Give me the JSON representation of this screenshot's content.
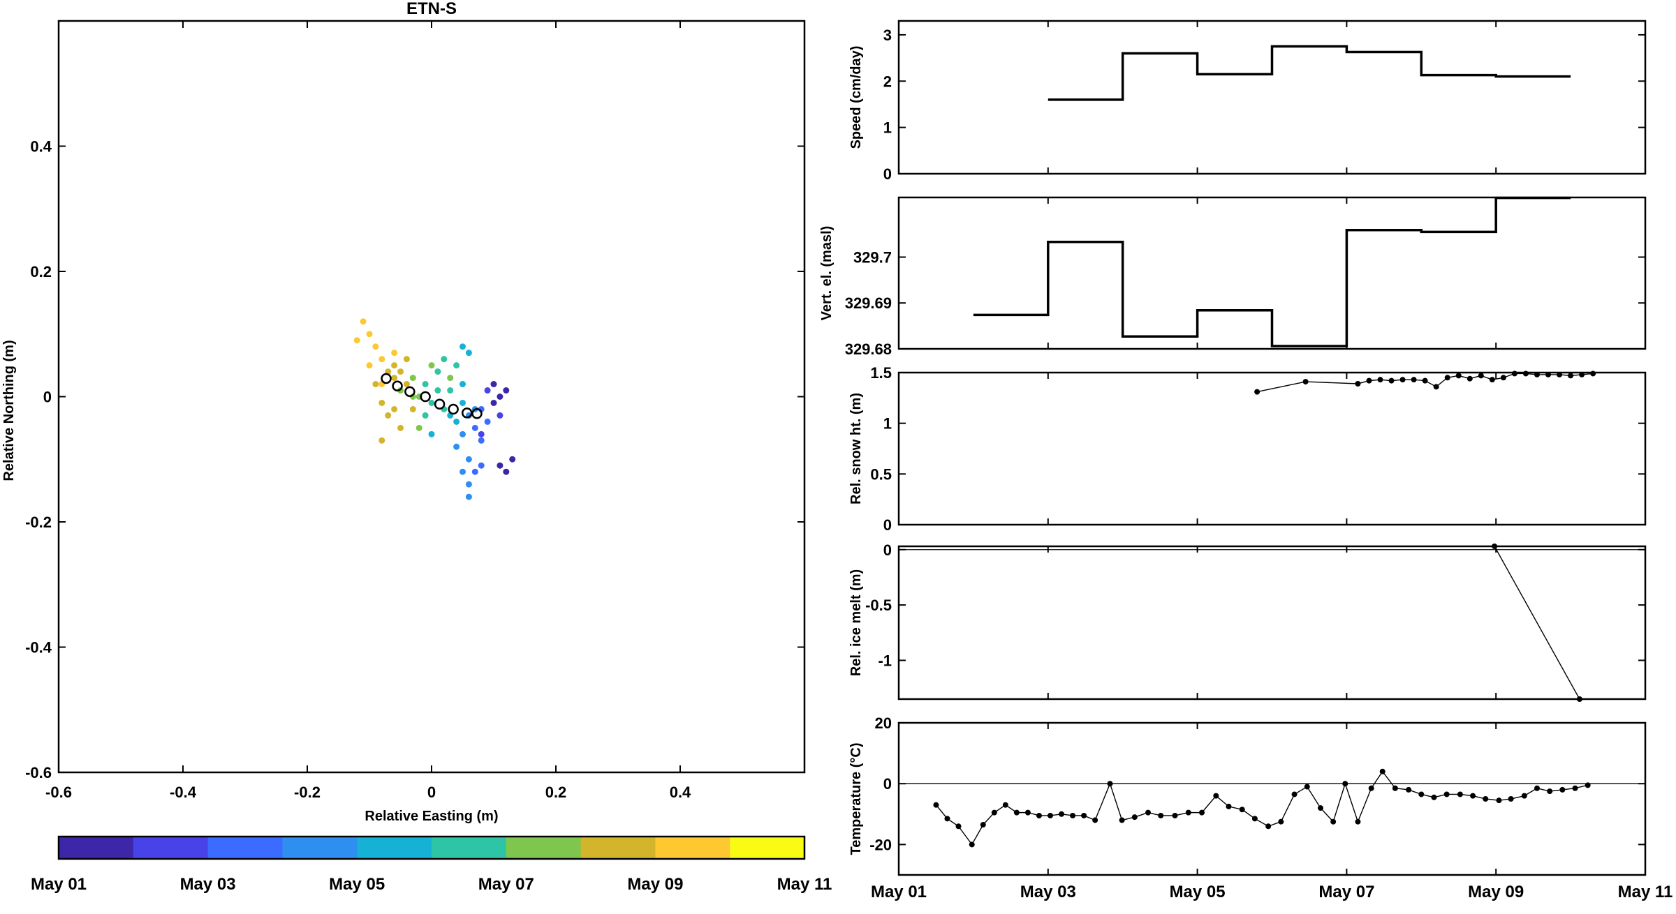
{
  "figure": {
    "title": "ETN-S",
    "date_ticks": [
      "May 01",
      "May 03",
      "May 05",
      "May 07",
      "May 09",
      "May 11"
    ]
  },
  "chart_data": [
    {
      "type": "scatter",
      "title": "ETN-S",
      "xlabel": "Relative Easting (m)",
      "ylabel": "Relative Northing (m)",
      "xlim": [
        -0.6,
        0.6
      ],
      "ylim": [
        -0.6,
        0.6
      ],
      "xticks": [
        -0.6,
        -0.4,
        -0.2,
        0,
        0.2,
        0.4
      ],
      "yticks": [
        -0.6,
        -0.4,
        -0.2,
        0,
        0.2,
        0.4
      ],
      "grid": false,
      "colorbar": {
        "colors": [
          "#3e26a8",
          "#4743e8",
          "#3c6cff",
          "#2f8ff0",
          "#16b2d6",
          "#2ec4a6",
          "#7ec64e",
          "#d2b52a",
          "#fdc830",
          "#f9fb14"
        ],
        "labels": [
          "May 01",
          "May 03",
          "May 05",
          "May 07",
          "May 09",
          "May 11"
        ]
      },
      "points": [
        {
          "x": -0.11,
          "y": 0.12,
          "day": 9.8
        },
        {
          "x": -0.1,
          "y": 0.1,
          "day": 9.6
        },
        {
          "x": -0.12,
          "y": 0.09,
          "day": 9.5
        },
        {
          "x": -0.09,
          "y": 0.08,
          "day": 9.4
        },
        {
          "x": -0.08,
          "y": 0.06,
          "day": 9.2
        },
        {
          "x": -0.1,
          "y": 0.05,
          "day": 9.6
        },
        {
          "x": -0.07,
          "y": 0.04,
          "day": 8.9
        },
        {
          "x": -0.06,
          "y": 0.03,
          "day": 8.6
        },
        {
          "x": -0.09,
          "y": 0.02,
          "day": 8.8
        },
        {
          "x": -0.08,
          "y": -0.01,
          "day": 8.5
        },
        {
          "x": -0.07,
          "y": -0.03,
          "day": 8.3
        },
        {
          "x": -0.05,
          "y": -0.05,
          "day": 8.2
        },
        {
          "x": -0.08,
          "y": -0.07,
          "day": 8.1
        },
        {
          "x": -0.06,
          "y": 0.05,
          "day": 8.7
        },
        {
          "x": -0.04,
          "y": 0.02,
          "day": 8.4
        },
        {
          "x": -0.03,
          "y": -0.02,
          "day": 8.0
        },
        {
          "x": -0.02,
          "y": -0.05,
          "day": 7.9
        },
        {
          "x": -0.04,
          "y": 0.06,
          "day": 8.6
        },
        {
          "x": -0.05,
          "y": 0.01,
          "day": 7.8
        },
        {
          "x": -0.03,
          "y": 0.03,
          "day": 7.4
        },
        {
          "x": -0.02,
          "y": 0.0,
          "day": 7.2
        },
        {
          "x": -0.01,
          "y": 0.02,
          "day": 6.9
        },
        {
          "x": 0.0,
          "y": -0.01,
          "day": 6.6
        },
        {
          "x": 0.01,
          "y": 0.01,
          "day": 6.3
        },
        {
          "x": 0.02,
          "y": -0.02,
          "day": 6.0
        },
        {
          "x": 0.01,
          "y": 0.04,
          "day": 6.8
        },
        {
          "x": 0.03,
          "y": 0.03,
          "day": 7.0
        },
        {
          "x": 0.04,
          "y": 0.05,
          "day": 6.4
        },
        {
          "x": 0.05,
          "y": 0.08,
          "day": 5.6
        },
        {
          "x": 0.06,
          "y": 0.07,
          "day": 5.4
        },
        {
          "x": 0.03,
          "y": -0.03,
          "day": 5.7
        },
        {
          "x": 0.04,
          "y": -0.04,
          "day": 5.3
        },
        {
          "x": 0.05,
          "y": -0.01,
          "day": 5.1
        },
        {
          "x": 0.06,
          "y": -0.03,
          "day": 4.8
        },
        {
          "x": 0.05,
          "y": -0.06,
          "day": 4.6
        },
        {
          "x": 0.04,
          "y": -0.08,
          "day": 4.4
        },
        {
          "x": 0.06,
          "y": -0.1,
          "day": 4.3
        },
        {
          "x": 0.05,
          "y": -0.12,
          "day": 4.2
        },
        {
          "x": 0.06,
          "y": -0.14,
          "day": 4.1
        },
        {
          "x": 0.06,
          "y": -0.16,
          "day": 4.0
        },
        {
          "x": 0.07,
          "y": -0.12,
          "day": 3.9
        },
        {
          "x": 0.08,
          "y": -0.11,
          "day": 3.8
        },
        {
          "x": 0.07,
          "y": -0.05,
          "day": 3.6
        },
        {
          "x": 0.08,
          "y": -0.02,
          "day": 3.3
        },
        {
          "x": 0.09,
          "y": -0.04,
          "day": 3.0
        },
        {
          "x": 0.08,
          "y": -0.06,
          "day": 2.6
        },
        {
          "x": 0.09,
          "y": 0.01,
          "day": 2.2
        },
        {
          "x": 0.1,
          "y": -0.01,
          "day": 1.8
        },
        {
          "x": 0.11,
          "y": 0.0,
          "day": 1.4
        },
        {
          "x": 0.12,
          "y": 0.01,
          "day": 1.0
        },
        {
          "x": 0.1,
          "y": 0.02,
          "day": 1.6
        },
        {
          "x": 0.11,
          "y": -0.03,
          "day": 2.0
        },
        {
          "x": 0.13,
          "y": -0.1,
          "day": 1.5
        },
        {
          "x": 0.12,
          "y": -0.12,
          "day": 1.7
        },
        {
          "x": 0.11,
          "y": -0.11,
          "day": 1.9
        },
        {
          "x": 0.02,
          "y": 0.06,
          "day": 6.2
        },
        {
          "x": 0.0,
          "y": 0.05,
          "day": 7.1
        },
        {
          "x": -0.01,
          "y": -0.03,
          "day": 6.5
        },
        {
          "x": 0.0,
          "y": -0.06,
          "day": 5.9
        },
        {
          "x": -0.06,
          "y": 0.07,
          "day": 9.1
        },
        {
          "x": -0.08,
          "y": 0.02,
          "day": 9.0
        },
        {
          "x": -0.06,
          "y": -0.02,
          "day": 8.4
        },
        {
          "x": 0.07,
          "y": -0.02,
          "day": 4.5
        },
        {
          "x": 0.05,
          "y": 0.02,
          "day": 5.9
        },
        {
          "x": -0.03,
          "y": 0.0,
          "day": 7.6
        },
        {
          "x": 0.08,
          "y": -0.07,
          "day": 3.1
        },
        {
          "x": 0.03,
          "y": 0.01,
          "day": 6.7
        },
        {
          "x": -0.05,
          "y": 0.04,
          "day": 8.8
        }
      ],
      "daily_mean_points": [
        {
          "x": -0.073,
          "y": 0.029
        },
        {
          "x": -0.055,
          "y": 0.017
        },
        {
          "x": -0.035,
          "y": 0.008
        },
        {
          "x": -0.01,
          "y": 0.0
        },
        {
          "x": 0.013,
          "y": -0.012
        },
        {
          "x": 0.035,
          "y": -0.02
        },
        {
          "x": 0.057,
          "y": -0.026
        },
        {
          "x": 0.073,
          "y": -0.027
        }
      ]
    },
    {
      "type": "line",
      "ylabel": "Speed (cm/day)",
      "xlim": [
        1,
        11
      ],
      "ylim": [
        0,
        3.3
      ],
      "yticks": [
        0,
        1,
        2,
        3
      ],
      "step": true,
      "x": [
        3,
        4,
        4,
        5,
        5,
        6,
        6,
        7,
        7,
        8,
        8,
        9,
        9,
        10
      ],
      "y": [
        1.6,
        1.6,
        2.6,
        2.6,
        2.15,
        2.15,
        2.75,
        2.75,
        2.63,
        2.63,
        2.13,
        2.13,
        2.1,
        2.1
      ]
    },
    {
      "type": "line",
      "ylabel": "Vert. el. (masl)",
      "xlim": [
        1,
        11
      ],
      "ylim": [
        329.68,
        329.713
      ],
      "yticks": [
        329.68,
        329.69,
        329.7
      ],
      "step": true,
      "x": [
        2,
        3,
        3,
        4,
        4,
        5,
        5,
        6,
        6,
        7,
        7,
        8,
        8,
        9,
        9,
        10
      ],
      "y": [
        329.6874,
        329.6874,
        329.7033,
        329.7033,
        329.6827,
        329.6827,
        329.6884,
        329.6884,
        329.6806,
        329.6806,
        329.7059,
        329.7059,
        329.7055,
        329.7055,
        329.7129,
        329.7129
      ]
    },
    {
      "type": "line",
      "ylabel": "Rel. snow ht. (m)",
      "xlim": [
        1,
        11
      ],
      "ylim": [
        0,
        1.5
      ],
      "yticks": [
        0,
        0.5,
        1,
        1.5
      ],
      "markers": true,
      "x": [
        5.8,
        6.45,
        7.15,
        7.3,
        7.45,
        7.6,
        7.75,
        7.9,
        8.05,
        8.2,
        8.35,
        8.5,
        8.65,
        8.8,
        8.95,
        9.1,
        9.25,
        9.4,
        9.55,
        9.7,
        9.85,
        10.0,
        10.15,
        10.3
      ],
      "y": [
        1.31,
        1.41,
        1.39,
        1.42,
        1.43,
        1.42,
        1.43,
        1.43,
        1.42,
        1.36,
        1.45,
        1.47,
        1.44,
        1.47,
        1.43,
        1.45,
        1.49,
        1.49,
        1.48,
        1.48,
        1.48,
        1.47,
        1.48,
        1.49
      ]
    },
    {
      "type": "line",
      "ylabel": "Rel. ice melt (m)",
      "xlim": [
        1,
        11
      ],
      "ylim": [
        -1.35,
        0.03
      ],
      "yticks": [
        -1,
        -0.5,
        0
      ],
      "markers": true,
      "zero_line": true,
      "x": [
        8.98,
        10.12
      ],
      "y": [
        0.03,
        -1.35
      ]
    },
    {
      "type": "line",
      "ylabel": "Temperature (°C)",
      "xlim": [
        1,
        11
      ],
      "ylim": [
        -30,
        20
      ],
      "yticks": [
        -20,
        0,
        20
      ],
      "markers": true,
      "zero_line": true,
      "x": [
        1.5,
        1.65,
        1.8,
        1.98,
        2.13,
        2.28,
        2.43,
        2.58,
        2.73,
        2.88,
        3.03,
        3.18,
        3.33,
        3.48,
        3.63,
        3.83,
        3.99,
        4.16,
        4.34,
        4.51,
        4.7,
        4.88,
        5.06,
        5.25,
        5.42,
        5.6,
        5.77,
        5.95,
        6.12,
        6.3,
        6.47,
        6.65,
        6.82,
        6.98,
        7.15,
        7.33,
        7.48,
        7.65,
        7.83,
        8.0,
        8.17,
        8.34,
        8.52,
        8.69,
        8.86,
        9.04,
        9.2,
        9.38,
        9.55,
        9.72,
        9.89,
        10.06,
        10.23
      ],
      "y": [
        -7,
        -11.5,
        -14,
        -20,
        -13.5,
        -9.5,
        -7,
        -9.5,
        -9.5,
        -10.5,
        -10.5,
        -10,
        -10.5,
        -10.5,
        -12,
        0,
        -12,
        -11,
        -9.5,
        -10.5,
        -10.5,
        -9.5,
        -9.5,
        -4,
        -7.5,
        -8.5,
        -11.5,
        -14,
        -12.5,
        -3.5,
        -1,
        -8,
        -12.5,
        0,
        -12.5,
        -1.5,
        4,
        -1.5,
        -2,
        -3.5,
        -4.5,
        -3.5,
        -3.5,
        -4,
        -5,
        -5.5,
        -5,
        -4,
        -1.5,
        -2.5,
        -2,
        -1.5,
        -0.5
      ]
    }
  ]
}
